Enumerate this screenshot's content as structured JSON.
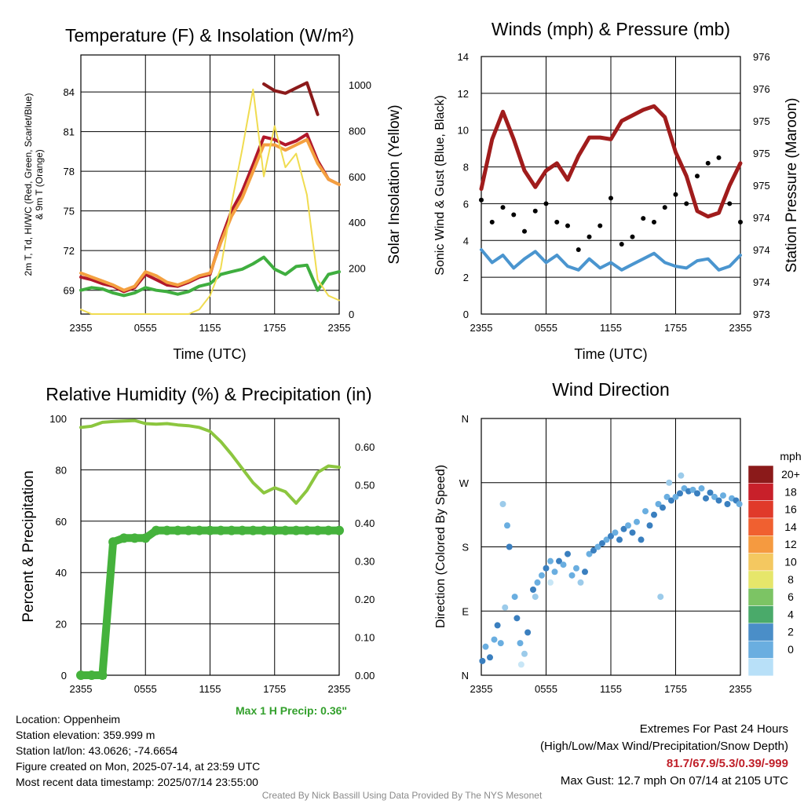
{
  "chart_data": [
    {
      "id": "temp",
      "type": "line",
      "title": "Temperature (F) & Insolation (W/m²)",
      "xlabel": "Time (UTC)",
      "ylabel_lines": [
        "2m T, Td, HI/WC (Red, Green, Scarlet/Blue)",
        "& 9m T (Orange)"
      ],
      "ylabel2": "Solar Insolation (Yellow)",
      "xticks": [
        "2355",
        "0555",
        "1155",
        "1755",
        "2355"
      ],
      "yticks": [
        "69",
        "72",
        "75",
        "78",
        "81",
        "84"
      ],
      "yticks2": [
        "0",
        "200",
        "400",
        "600",
        "800",
        "1000"
      ],
      "ylim": [
        67.2,
        86.8
      ],
      "ylim2": [
        0,
        1130
      ],
      "x": [
        0,
        1,
        2,
        3,
        4,
        5,
        6,
        7,
        8,
        9,
        10,
        11,
        12,
        13,
        14,
        15,
        16,
        17,
        18,
        19,
        20,
        21,
        22,
        23,
        24
      ],
      "series": [
        {
          "key": "t2m",
          "color": "#b2182b",
          "values": [
            70.0,
            69.8,
            69.5,
            69.3,
            68.9,
            69.2,
            70.2,
            69.8,
            69.4,
            69.3,
            69.6,
            70.0,
            70.2,
            72.8,
            75.0,
            76.5,
            78.5,
            80.6,
            80.4,
            80.0,
            80.3,
            80.8,
            78.8,
            77.4,
            77.0
          ]
        },
        {
          "key": "t9m",
          "color": "#f4a040",
          "values": [
            70.3,
            70.0,
            69.7,
            69.4,
            69.0,
            69.3,
            70.4,
            70.1,
            69.6,
            69.4,
            69.7,
            70.1,
            70.3,
            72.6,
            74.6,
            76.0,
            78.0,
            80.0,
            80.0,
            79.6,
            80.0,
            80.4,
            78.6,
            77.4,
            77.0
          ]
        },
        {
          "key": "td",
          "color": "#3fae3f",
          "values": [
            69.0,
            69.2,
            69.1,
            68.8,
            68.6,
            68.8,
            69.2,
            69.0,
            68.9,
            68.7,
            68.9,
            69.3,
            69.5,
            70.2,
            70.4,
            70.6,
            71.0,
            71.5,
            70.6,
            70.2,
            70.8,
            70.9,
            69.0,
            70.2,
            70.4
          ]
        },
        {
          "key": "hi",
          "color": "#8b1a1a",
          "values": [
            null,
            null,
            null,
            null,
            null,
            null,
            null,
            null,
            null,
            null,
            null,
            null,
            null,
            null,
            null,
            null,
            null,
            84.6,
            84.1,
            83.9,
            84.3,
            84.7,
            82.3,
            null,
            null
          ]
        },
        {
          "key": "solar",
          "color": "#f0dc50",
          "axis": "y2",
          "values": [
            20,
            0,
            0,
            0,
            0,
            0,
            0,
            0,
            0,
            0,
            0,
            20,
            80,
            200,
            480,
            720,
            980,
            600,
            820,
            640,
            700,
            520,
            150,
            80,
            60
          ]
        }
      ]
    },
    {
      "id": "wind",
      "type": "line",
      "title": "Winds (mph) & Pressure (mb)",
      "xlabel": "Time (UTC)",
      "ylabel": "Sonic Wind & Gust (Blue, Black)",
      "ylabel2": "Station Pressure (Maroon)",
      "xticks": [
        "2355",
        "0555",
        "1155",
        "1755",
        "2355"
      ],
      "yticks": [
        "0",
        "2",
        "4",
        "6",
        "8",
        "10",
        "12",
        "14"
      ],
      "yticks2": [
        "973",
        "974",
        "974",
        "974",
        "975",
        "975",
        "975",
        "976",
        "976"
      ],
      "ylim": [
        0,
        14
      ],
      "x": [
        0,
        1,
        2,
        3,
        4,
        5,
        6,
        7,
        8,
        9,
        10,
        11,
        12,
        13,
        14,
        15,
        16,
        17,
        18,
        19,
        20,
        21,
        22,
        23,
        24
      ],
      "series": [
        {
          "key": "pressure",
          "color": "#a01c1c",
          "values": [
            6.8,
            9.5,
            11.0,
            9.5,
            7.8,
            6.9,
            7.8,
            8.2,
            7.3,
            8.6,
            9.6,
            9.6,
            9.5,
            10.5,
            10.8,
            11.1,
            11.3,
            10.7,
            8.8,
            7.5,
            5.6,
            5.3,
            5.5,
            7.0,
            8.2
          ]
        },
        {
          "key": "wind",
          "color": "#4a95cf",
          "values": [
            3.5,
            2.8,
            3.2,
            2.5,
            3.0,
            3.4,
            2.8,
            3.2,
            2.6,
            2.4,
            3.0,
            2.5,
            2.8,
            2.4,
            2.7,
            3.0,
            3.3,
            2.8,
            2.6,
            2.5,
            2.9,
            3.0,
            2.4,
            2.6,
            3.2
          ]
        },
        {
          "key": "gust",
          "color": "#000000",
          "values": [
            6.2,
            5.0,
            5.8,
            5.4,
            4.5,
            5.6,
            6.0,
            5.0,
            4.8,
            3.5,
            4.2,
            4.8,
            6.3,
            3.8,
            4.2,
            5.2,
            5.0,
            5.8,
            6.5,
            6.0,
            7.5,
            8.2,
            8.5,
            6.0,
            5.0
          ]
        }
      ]
    },
    {
      "id": "rh",
      "type": "line",
      "title": "Relative Humidity (%) & Precipitation (in)",
      "ylabel": "Percent & Precipitation",
      "xticks": [
        "2355",
        "0555",
        "1155",
        "1755",
        "2355"
      ],
      "yticks": [
        "0",
        "20",
        "40",
        "60",
        "80",
        "100"
      ],
      "yticks2": [
        "0.00",
        "0.10",
        "0.20",
        "0.30",
        "0.40",
        "0.50",
        "0.60"
      ],
      "ylim": [
        0,
        100
      ],
      "ylim2": [
        0,
        0.674
      ],
      "x": [
        0,
        1,
        2,
        3,
        4,
        5,
        6,
        7,
        8,
        9,
        10,
        11,
        12,
        13,
        14,
        15,
        16,
        17,
        18,
        19,
        20,
        21,
        22,
        23,
        24
      ],
      "series": [
        {
          "key": "rh",
          "color": "#8cc63f",
          "values": [
            96.5,
            97.0,
            98.5,
            98.8,
            99.0,
            99.2,
            98.0,
            97.8,
            98.0,
            97.5,
            97.2,
            96.5,
            95.0,
            91.0,
            86.0,
            80.5,
            75.0,
            71.0,
            73.0,
            71.5,
            67.0,
            72.0,
            79.0,
            81.5,
            81.0
          ]
        },
        {
          "key": "precip",
          "color": "#45b23c",
          "axis": "y2",
          "values": [
            0,
            0,
            0,
            0.35,
            0.36,
            0.36,
            0.36,
            0.38,
            0.38,
            0.38,
            0.38,
            0.38,
            0.38,
            0.38,
            0.38,
            0.38,
            0.38,
            0.38,
            0.38,
            0.38,
            0.38,
            0.38,
            0.38,
            0.38,
            0.38
          ]
        }
      ],
      "annotation": "Max 1 H Precip: 0.36\""
    },
    {
      "id": "wdir",
      "type": "scatter",
      "title": "Wind Direction",
      "ylabel": "Direction (Colored By Speed)",
      "xticks": [
        "2355",
        "0555",
        "1155",
        "1755",
        "2355"
      ],
      "yticks": [
        "N",
        "E",
        "S",
        "W",
        "N"
      ],
      "ylim": [
        0,
        360
      ],
      "colorbar_unit": "mph",
      "colorbar_labels": [
        "20+",
        "18",
        "16",
        "14",
        "12",
        "10",
        "8",
        "6",
        "4",
        "2",
        "0"
      ],
      "colorbar_colors": [
        "#8b1a1a",
        "#c8202a",
        "#e03a2a",
        "#f06030",
        "#f59a40",
        "#f4c860",
        "#e6e66a",
        "#7cc464",
        "#4aaa6a",
        "#4a8ec8",
        "#6aaee0",
        "#b8e0f8"
      ],
      "points": [
        [
          0.1,
          20,
          3
        ],
        [
          0.4,
          40,
          2
        ],
        [
          0.8,
          25,
          3
        ],
        [
          1.2,
          50,
          2
        ],
        [
          1.5,
          70,
          3
        ],
        [
          1.8,
          45,
          2
        ],
        [
          2.2,
          95,
          1
        ],
        [
          2.0,
          240,
          1
        ],
        [
          2.4,
          210,
          2
        ],
        [
          2.6,
          180,
          3
        ],
        [
          3.1,
          110,
          2
        ],
        [
          3.3,
          80,
          3
        ],
        [
          3.6,
          45,
          2
        ],
        [
          4.0,
          30,
          1
        ],
        [
          4.3,
          60,
          3
        ],
        [
          4.8,
          120,
          3
        ],
        [
          5.2,
          130,
          2
        ],
        [
          5.6,
          140,
          2
        ],
        [
          6.0,
          150,
          3
        ],
        [
          6.4,
          160,
          2
        ],
        [
          6.8,
          145,
          2
        ],
        [
          7.2,
          160,
          3
        ],
        [
          7.6,
          155,
          2
        ],
        [
          8.0,
          170,
          3
        ],
        [
          8.4,
          140,
          2
        ],
        [
          8.8,
          150,
          2
        ],
        [
          9.2,
          130,
          1
        ],
        [
          9.6,
          145,
          3
        ],
        [
          10.0,
          170,
          2
        ],
        [
          10.4,
          175,
          3
        ],
        [
          10.8,
          180,
          2
        ],
        [
          11.2,
          185,
          3
        ],
        [
          11.6,
          190,
          2
        ],
        [
          12.0,
          195,
          3
        ],
        [
          12.4,
          200,
          2
        ],
        [
          12.8,
          190,
          3
        ],
        [
          13.2,
          205,
          3
        ],
        [
          13.6,
          210,
          2
        ],
        [
          14.0,
          200,
          3
        ],
        [
          14.4,
          215,
          2
        ],
        [
          14.8,
          190,
          3
        ],
        [
          15.2,
          230,
          2
        ],
        [
          15.6,
          210,
          3
        ],
        [
          16.0,
          225,
          3
        ],
        [
          16.4,
          240,
          2
        ],
        [
          16.8,
          235,
          3
        ],
        [
          17.2,
          250,
          2
        ],
        [
          17.6,
          245,
          3
        ],
        [
          18.0,
          250,
          2
        ],
        [
          18.4,
          255,
          3
        ],
        [
          18.8,
          262,
          2
        ],
        [
          19.2,
          258,
          3
        ],
        [
          19.6,
          260,
          2
        ],
        [
          20.0,
          255,
          3
        ],
        [
          20.4,
          262,
          2
        ],
        [
          20.8,
          248,
          3
        ],
        [
          21.2,
          256,
          3
        ],
        [
          21.6,
          250,
          2
        ],
        [
          22.0,
          245,
          3
        ],
        [
          22.4,
          252,
          2
        ],
        [
          22.8,
          240,
          3
        ],
        [
          23.2,
          248,
          2
        ],
        [
          23.6,
          245,
          3
        ],
        [
          23.9,
          240,
          2
        ],
        [
          16.6,
          110,
          1
        ],
        [
          17.4,
          270,
          1
        ],
        [
          18.5,
          280,
          1
        ],
        [
          5.0,
          110,
          1
        ],
        [
          3.7,
          15,
          0
        ],
        [
          6.4,
          130,
          0
        ]
      ]
    }
  ],
  "station": {
    "location": "Location: Oppenheim",
    "elevation": "Station elevation: 359.999 m",
    "latlon": "Station lat/lon: 43.0626; -74.6654",
    "created": "Figure created on Mon, 2025-07-14, at 23:59 UTC",
    "recent": "Most recent data timestamp: 2025/07/14 23:55:00"
  },
  "extremes": {
    "heading": "Extremes For Past 24 Hours",
    "subheading": "(High/Low/Max Wind/Precipitation/Snow Depth)",
    "values": "81.7/67.9/5.3/0.39/-999",
    "gust": "Max Gust: 12.7 mph On 07/14 at 2105 UTC"
  },
  "credit": "Created By Nick Bassill Using Data Provided By The NYS Mesonet"
}
